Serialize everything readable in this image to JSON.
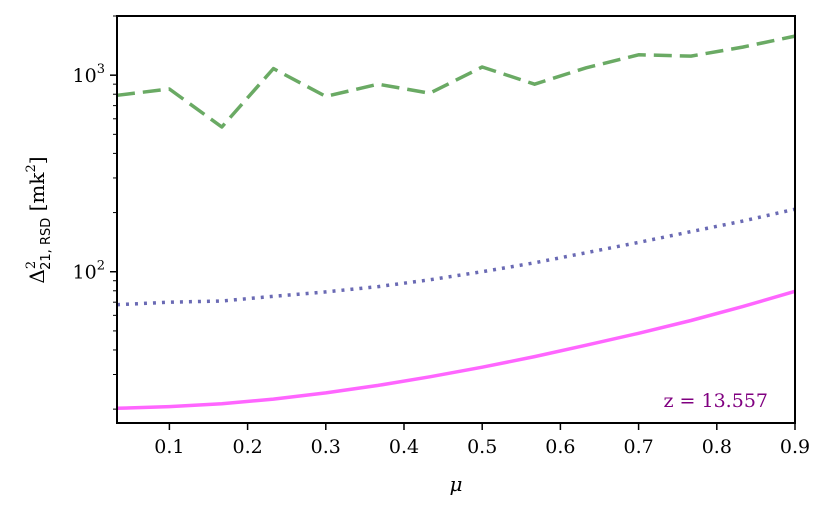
{
  "chart_data": {
    "type": "line",
    "xlabel": "μ",
    "ylabel": {
      "base": "Δ",
      "superscript": "2",
      "subscript": "21, RSD",
      "unit_open": " [mk",
      "unit_sup": "2",
      "unit_close": "]"
    },
    "xlim": [
      0.033,
      0.9
    ],
    "ylim": [
      17,
      2000
    ],
    "yscale": "log",
    "grid": false,
    "legend": "none",
    "x_ticks": [
      "0.1",
      "0.2",
      "0.3",
      "0.4",
      "0.5",
      "0.6",
      "0.7",
      "0.8",
      "0.9"
    ],
    "y_ticks": [
      {
        "base": "10",
        "exp": "2"
      },
      {
        "base": "10",
        "exp": "3"
      }
    ],
    "annotation": {
      "text": "z = 13.557",
      "color": "#800080"
    },
    "series": [
      {
        "style": "dashed",
        "color": "#6aaa64",
        "x": [
          0.033,
          0.1,
          0.167,
          0.233,
          0.3,
          0.367,
          0.433,
          0.5,
          0.567,
          0.633,
          0.7,
          0.767,
          0.833,
          0.9
        ],
        "y": [
          790,
          850,
          545,
          1080,
          780,
          900,
          810,
          1100,
          900,
          1090,
          1270,
          1250,
          1390,
          1580
        ]
      },
      {
        "style": "dotted",
        "color": "#6a6ab4",
        "x": [
          0.033,
          0.1,
          0.167,
          0.233,
          0.3,
          0.367,
          0.433,
          0.5,
          0.567,
          0.633,
          0.7,
          0.767,
          0.833,
          0.9
        ],
        "y": [
          68,
          70,
          71,
          75,
          79,
          84,
          91,
          100,
          111,
          125,
          141,
          160,
          181,
          208
        ]
      },
      {
        "style": "solid",
        "color": "#ff66ff",
        "x": [
          0.033,
          0.1,
          0.167,
          0.233,
          0.3,
          0.367,
          0.433,
          0.5,
          0.567,
          0.633,
          0.7,
          0.767,
          0.833,
          0.9
        ],
        "y": [
          20.2,
          20.6,
          21.3,
          22.5,
          24.2,
          26.4,
          29.2,
          32.7,
          37.0,
          42.3,
          48.6,
          56.5,
          66.5,
          79.5
        ]
      }
    ]
  }
}
